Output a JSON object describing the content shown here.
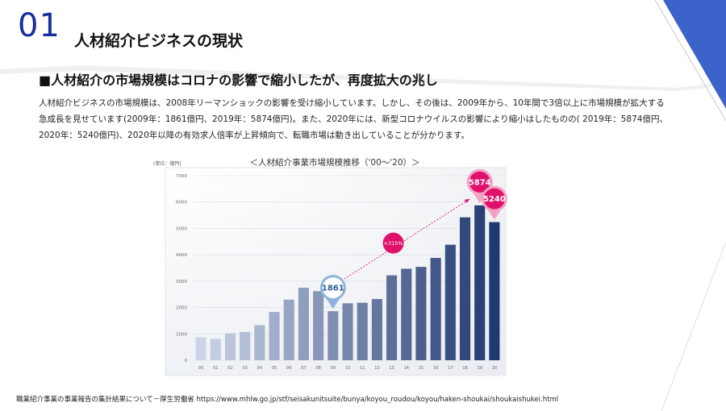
{
  "section": {
    "number": "01",
    "title": "人材紹介ビジネスの現状"
  },
  "subheading": "■人材紹介の市場規模はコロナの影響で縮小したが、再度拡大の兆し",
  "body_lines": [
    "人材紹介ビジネスの市場規模は、2008年リーマンショックの影響を受け縮小しています。しかし、その後は、2009年から、10年間で3倍以上に市場規模が拡大する",
    "急成長を見せています(2009年：1861億円、2019年：5874億円)。また、2020年には、新型コロナウイルスの影響により縮小はしたものの( 2019年：5874億円、",
    "2020年：5240億円)、2020年以降の有効求人倍率が上昇傾向で、転職市場は動き出していることが分かります。"
  ],
  "source_text": "職業紹介事業の事業報告の集計結果について－厚生労働省 https://www.mhlw.go.jp/stf/seisakunitsuite/bunya/koyou_roudou/koyou/haken-shoukai/shoukaishukei.html",
  "colors": {
    "section_blue": "#1a2f9a",
    "accent_blue": "#3b63c9",
    "pink": "#e0116b",
    "callout_1861": "#8fb3dd"
  },
  "chart_data": {
    "type": "bar",
    "title": "＜人材紹介事業市場規模推移（'00～'20）＞",
    "unit_label": "(単位：億円)",
    "categories": [
      "00",
      "01",
      "02",
      "03",
      "04",
      "05",
      "06",
      "07",
      "08",
      "09",
      "10",
      "11",
      "12",
      "13",
      "14",
      "15",
      "16",
      "17",
      "18",
      "19",
      "20"
    ],
    "values": [
      870,
      810,
      1020,
      1070,
      1330,
      1830,
      2300,
      2750,
      2620,
      1861,
      2160,
      2180,
      2320,
      3220,
      3470,
      3540,
      3880,
      4380,
      5420,
      5874,
      5240
    ],
    "ylim": [
      0,
      7000
    ],
    "yticks": [
      0,
      1000,
      2000,
      3000,
      4000,
      5000,
      6000,
      7000
    ],
    "gridlines": true,
    "annotations": {
      "low_point": "1861",
      "peak": "5874",
      "latest": "5240",
      "growth": "×315%"
    }
  }
}
